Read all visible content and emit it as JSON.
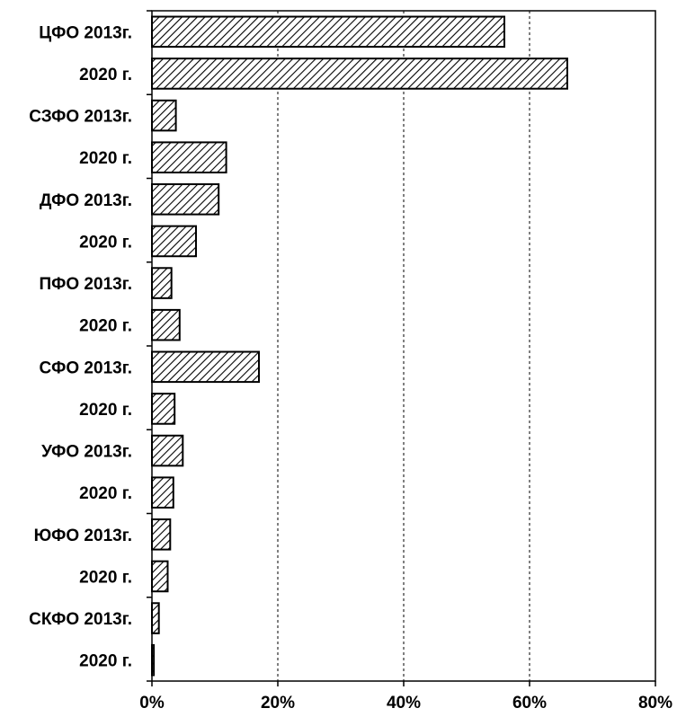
{
  "chart_data": {
    "type": "bar",
    "orientation": "horizontal",
    "title": "",
    "xlabel": "",
    "ylabel": "",
    "categories": [
      "ЦФО 2013г.",
      "2020 г.",
      "СЗФО 2013г.",
      "2020 г.",
      "ДФО 2013г.",
      "2020 г.",
      "ПФО 2013г.",
      "2020 г.",
      "СФО 2013г.",
      "2020 г.",
      "УФО 2013г.",
      "2020 г.",
      "ЮФО 2013г.",
      "2020 г.",
      "СКФО 2013г.",
      "2020 г."
    ],
    "values": [
      56.0,
      66.0,
      3.8,
      11.8,
      10.6,
      7.0,
      3.1,
      4.4,
      17.0,
      3.6,
      4.9,
      3.4,
      2.9,
      2.5,
      1.1,
      0.3
    ],
    "xlim": [
      0,
      80
    ],
    "xticks": [
      0,
      20,
      40,
      60,
      80
    ],
    "xtick_labels": [
      "0%",
      "20%",
      "40%",
      "60%",
      "80%"
    ],
    "unit": "%",
    "grid": "vertical-dashed",
    "legend": "none",
    "bar_fill": "diagonal-hatch",
    "colors": {
      "bar_stroke": "#000000",
      "hatch": "#000000",
      "background": "#ffffff",
      "grid": "#000000"
    }
  }
}
